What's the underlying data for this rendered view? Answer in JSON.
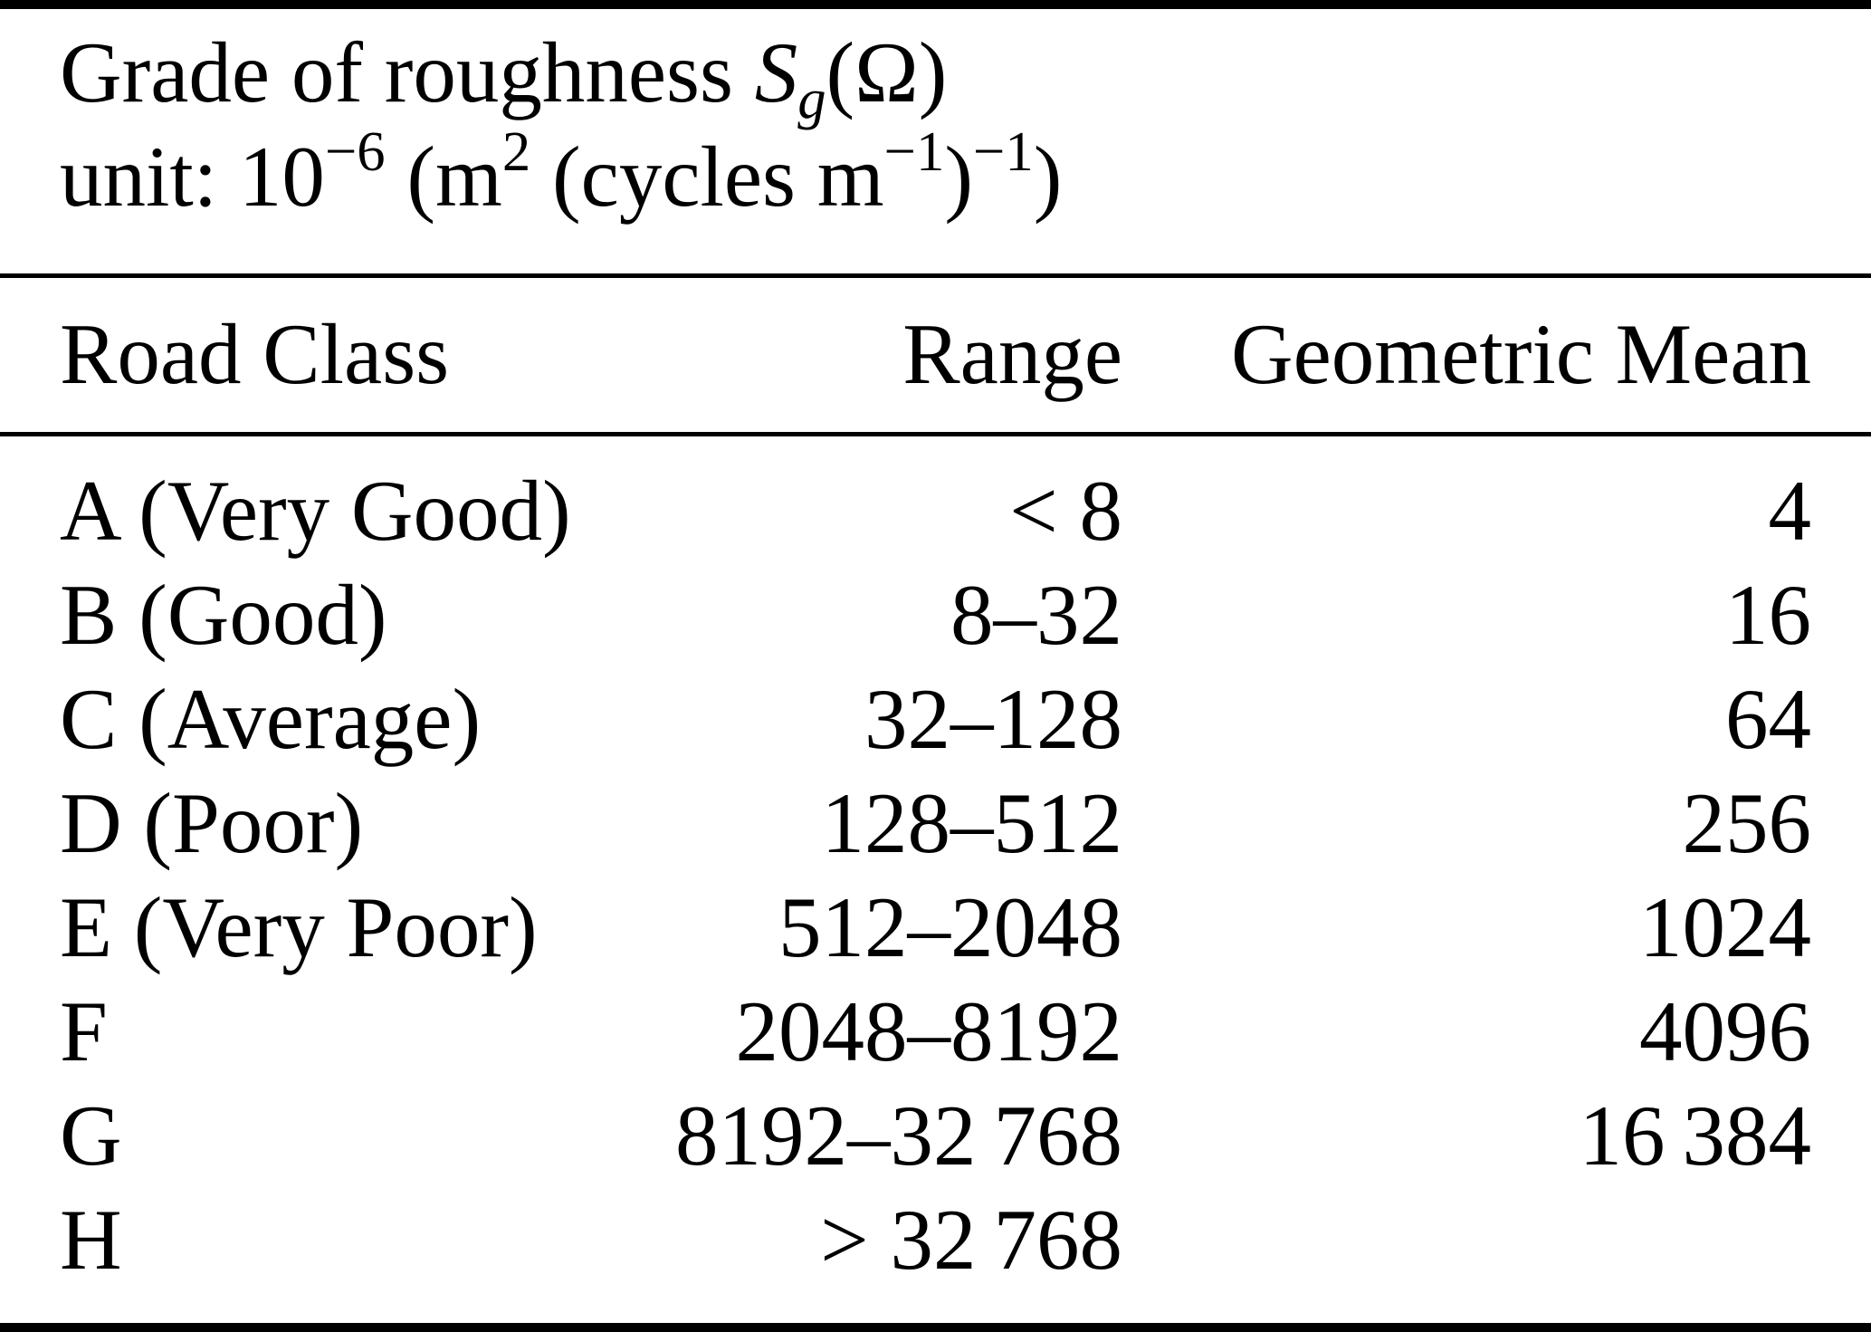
{
  "caption": {
    "title_prefix": "Grade of roughness ",
    "symbol_main": "S",
    "symbol_sub": "g",
    "symbol_args": "(Ω)",
    "unit_prefix": "unit: 10",
    "unit_exp_1": "−6",
    "unit_seg_1": " (m",
    "unit_exp_2": "2",
    "unit_seg_2": " (cycles m",
    "unit_exp_3": "−1",
    "unit_seg_3": ")",
    "unit_exp_4": "−1",
    "unit_seg_4": ")"
  },
  "table": {
    "columns": [
      "Road Class",
      "Range",
      "Geometric Mean"
    ],
    "rows": [
      {
        "road_class": "A (Very Good)",
        "range": "< 8",
        "geometric_mean": "4"
      },
      {
        "road_class": "B (Good)",
        "range": "8–32",
        "geometric_mean": "16"
      },
      {
        "road_class": "C (Average)",
        "range": "32–128",
        "geometric_mean": "64"
      },
      {
        "road_class": "D (Poor)",
        "range": "128–512",
        "geometric_mean": "256"
      },
      {
        "road_class": "E (Very Poor)",
        "range": "512–2048",
        "geometric_mean": "1024"
      },
      {
        "road_class": "F",
        "range": "2048–8192",
        "geometric_mean": "4096"
      },
      {
        "road_class": "G",
        "range": "8192–32 768",
        "geometric_mean": "16 384"
      },
      {
        "road_class": "H",
        "range": "> 32 768",
        "geometric_mean": ""
      }
    ]
  },
  "colors": {
    "text": "#000000",
    "background": "#ffffff",
    "rule": "#000000"
  }
}
